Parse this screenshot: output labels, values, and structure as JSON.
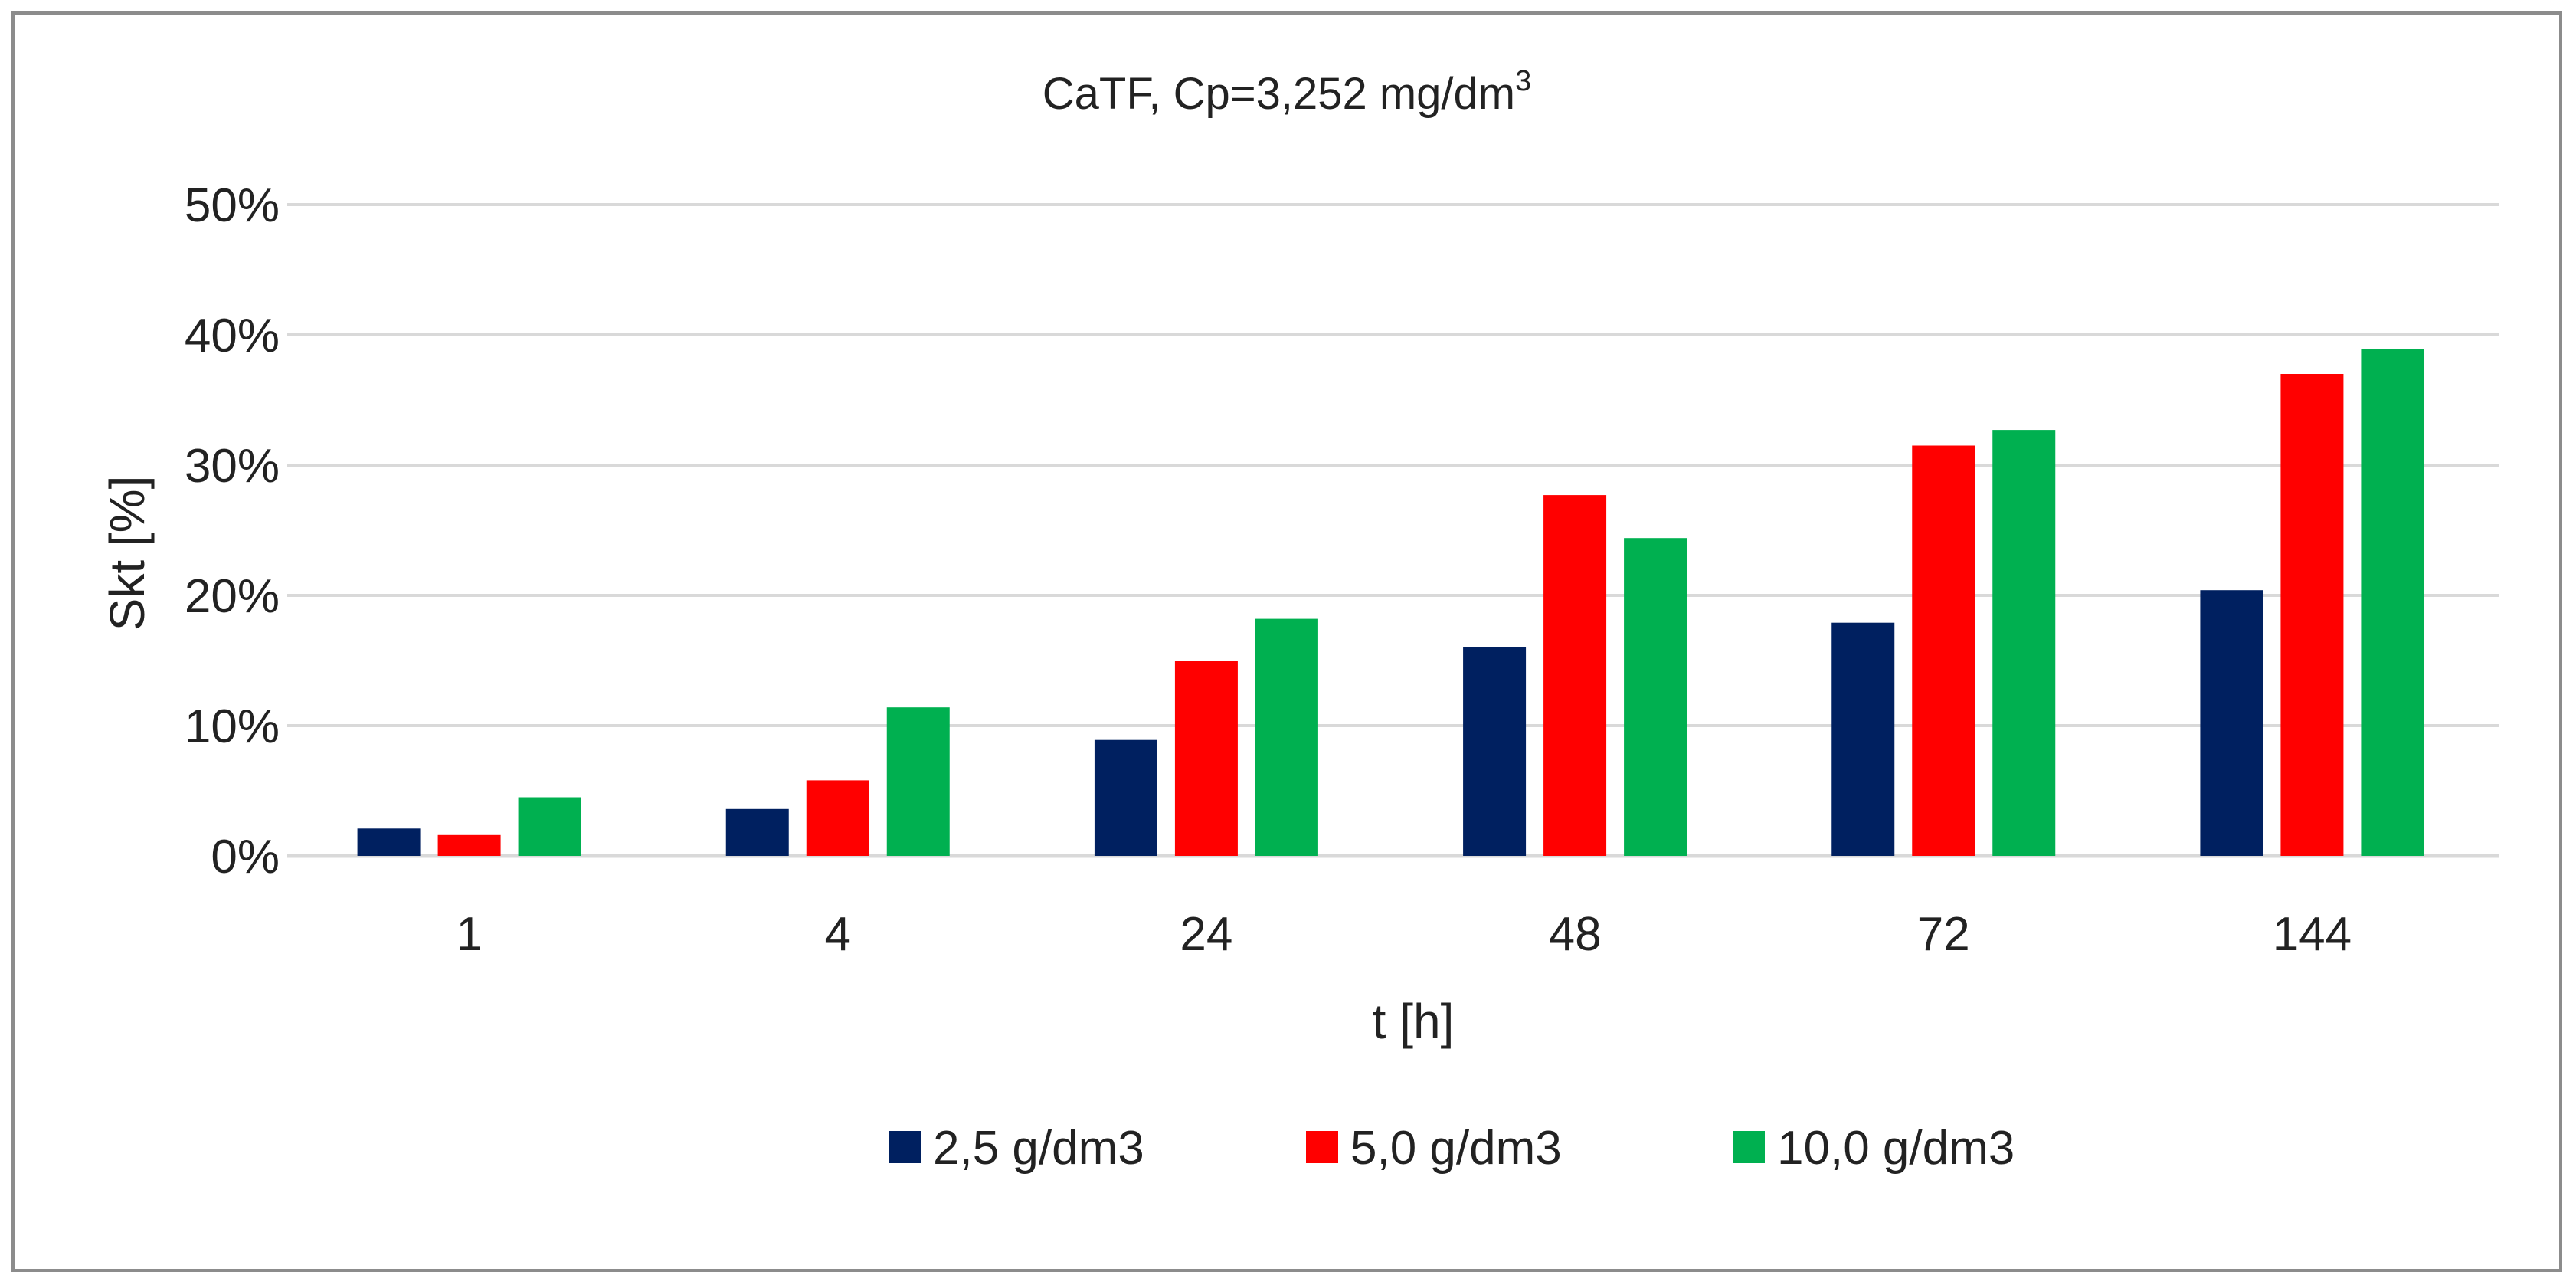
{
  "chart_data": {
    "type": "bar",
    "title": "CaTF, Cp=3,252 mg/dm",
    "title_superscript": "3",
    "xlabel": "t [h]",
    "ylabel": "Skt [%]",
    "ylim": [
      0,
      50
    ],
    "y_ticks": [
      0,
      10,
      20,
      30,
      40,
      50
    ],
    "y_tick_labels": [
      "0%",
      "10%",
      "20%",
      "30%",
      "40%",
      "50%"
    ],
    "grid": true,
    "legend_position": "bottom-center",
    "categories": [
      "1",
      "4",
      "24",
      "48",
      "72",
      "144"
    ],
    "series": [
      {
        "name": "2,5 g/dm3",
        "color": "#002060",
        "values": [
          2.1,
          3.6,
          8.9,
          16.0,
          17.9,
          20.4
        ]
      },
      {
        "name": "5,0 g/dm3",
        "color": "#ff0000",
        "values": [
          1.6,
          5.8,
          15.0,
          27.7,
          31.5,
          37.0
        ]
      },
      {
        "name": "10,0 g/dm3",
        "color": "#00b050",
        "values": [
          4.5,
          11.4,
          18.2,
          24.4,
          32.7,
          38.9
        ]
      }
    ],
    "colors": {
      "gridline": "#d9d9d9",
      "axis": "#d9d9d9",
      "frame": "#8c8c8c"
    }
  }
}
